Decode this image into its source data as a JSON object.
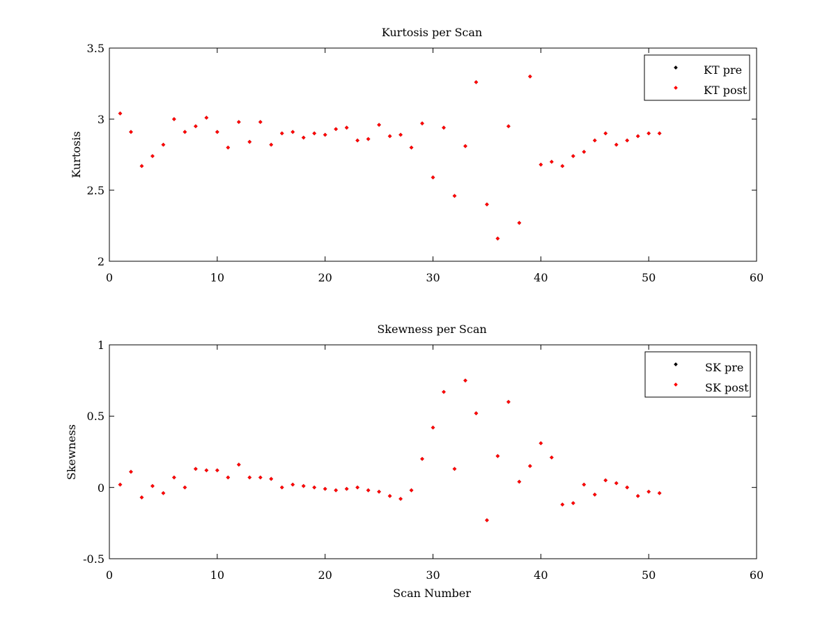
{
  "colors": {
    "pre": "#000000",
    "post": "#ff0000"
  },
  "chart_data": [
    {
      "type": "scatter",
      "title": "Kurtosis per Scan",
      "xlabel": "",
      "ylabel": "Kurtosis",
      "xlim": [
        0,
        60
      ],
      "ylim": [
        2,
        3.5
      ],
      "xticks": [
        0,
        10,
        20,
        30,
        40,
        50,
        60
      ],
      "xtick_labels": [
        "0",
        "10",
        "20",
        "30",
        "40",
        "50",
        "60"
      ],
      "yticks": [
        2,
        2.5,
        3,
        3.5
      ],
      "ytick_labels": [
        "2",
        "2.5",
        "3",
        "3.5"
      ],
      "grid": false,
      "legend_position": "top-right",
      "series": [
        {
          "name": "KT pre",
          "color": "#000000",
          "x": [
            1,
            2,
            3,
            4,
            5,
            6,
            7,
            8,
            9,
            10,
            11,
            12,
            13,
            14,
            15,
            16,
            17,
            18,
            19,
            20,
            21,
            22,
            23,
            24,
            25,
            26,
            27,
            28,
            29,
            30,
            31,
            32,
            33,
            34,
            35,
            36,
            37,
            38,
            39,
            40,
            41,
            42,
            43,
            44,
            45,
            46,
            47,
            48,
            49,
            50,
            51
          ],
          "y": [
            3.04,
            2.91,
            2.67,
            2.74,
            2.82,
            3.0,
            2.91,
            2.95,
            3.01,
            2.91,
            2.8,
            2.98,
            2.84,
            2.98,
            2.82,
            2.9,
            2.91,
            2.87,
            2.9,
            2.89,
            2.93,
            2.94,
            2.85,
            2.86,
            2.96,
            2.88,
            2.89,
            2.8,
            2.97,
            2.59,
            2.94,
            2.46,
            2.81,
            3.26,
            2.4,
            2.16,
            2.95,
            2.27,
            3.3,
            2.68,
            2.7,
            2.67,
            2.74,
            2.77,
            2.85,
            2.9,
            2.82,
            2.85,
            2.88,
            2.9,
            2.9
          ]
        },
        {
          "name": "KT post",
          "color": "#ff0000",
          "x": [
            1,
            2,
            3,
            4,
            5,
            6,
            7,
            8,
            9,
            10,
            11,
            12,
            13,
            14,
            15,
            16,
            17,
            18,
            19,
            20,
            21,
            22,
            23,
            24,
            25,
            26,
            27,
            28,
            29,
            30,
            31,
            32,
            33,
            34,
            35,
            36,
            37,
            38,
            39,
            40,
            41,
            42,
            43,
            44,
            45,
            46,
            47,
            48,
            49,
            50,
            51
          ],
          "y": [
            3.04,
            2.91,
            2.67,
            2.74,
            2.82,
            3.0,
            2.91,
            2.95,
            3.01,
            2.91,
            2.8,
            2.98,
            2.84,
            2.98,
            2.82,
            2.9,
            2.91,
            2.87,
            2.9,
            2.89,
            2.93,
            2.94,
            2.85,
            2.86,
            2.96,
            2.88,
            2.89,
            2.8,
            2.97,
            2.59,
            2.94,
            2.46,
            2.81,
            3.26,
            2.4,
            2.16,
            2.95,
            2.27,
            3.3,
            2.68,
            2.7,
            2.67,
            2.74,
            2.77,
            2.85,
            2.9,
            2.82,
            2.85,
            2.88,
            2.9,
            2.9
          ]
        }
      ]
    },
    {
      "type": "scatter",
      "title": "Skewness per Scan",
      "xlabel": "Scan Number",
      "ylabel": "Skewness",
      "xlim": [
        0,
        60
      ],
      "ylim": [
        -0.5,
        1
      ],
      "xticks": [
        0,
        10,
        20,
        30,
        40,
        50,
        60
      ],
      "xtick_labels": [
        "0",
        "10",
        "20",
        "30",
        "40",
        "50",
        "60"
      ],
      "yticks": [
        -0.5,
        0,
        0.5,
        1
      ],
      "ytick_labels": [
        "-0.5",
        "0",
        "0.5",
        "1"
      ],
      "grid": false,
      "legend_position": "top-right",
      "series": [
        {
          "name": "SK pre",
          "color": "#000000",
          "x": [
            1,
            2,
            3,
            4,
            5,
            6,
            7,
            8,
            9,
            10,
            11,
            12,
            13,
            14,
            15,
            16,
            17,
            18,
            19,
            20,
            21,
            22,
            23,
            24,
            25,
            26,
            27,
            28,
            29,
            30,
            31,
            32,
            33,
            34,
            35,
            36,
            37,
            38,
            39,
            40,
            41,
            42,
            43,
            44,
            45,
            46,
            47,
            48,
            49,
            50,
            51
          ],
          "y": [
            0.02,
            0.11,
            -0.07,
            0.01,
            -0.04,
            0.07,
            0.0,
            0.13,
            0.12,
            0.12,
            0.07,
            0.16,
            0.07,
            0.07,
            0.06,
            0.0,
            0.02,
            0.01,
            0.0,
            -0.01,
            -0.02,
            -0.01,
            0.0,
            -0.02,
            -0.03,
            -0.06,
            -0.08,
            -0.02,
            0.2,
            0.42,
            0.67,
            0.13,
            0.75,
            0.52,
            -0.23,
            0.22,
            0.6,
            0.04,
            0.15,
            0.31,
            0.21,
            -0.12,
            -0.11,
            0.02,
            -0.05,
            0.05,
            0.03,
            0.0,
            -0.06,
            -0.03,
            -0.04
          ]
        },
        {
          "name": "SK post",
          "color": "#ff0000",
          "x": [
            1,
            2,
            3,
            4,
            5,
            6,
            7,
            8,
            9,
            10,
            11,
            12,
            13,
            14,
            15,
            16,
            17,
            18,
            19,
            20,
            21,
            22,
            23,
            24,
            25,
            26,
            27,
            28,
            29,
            30,
            31,
            32,
            33,
            34,
            35,
            36,
            37,
            38,
            39,
            40,
            41,
            42,
            43,
            44,
            45,
            46,
            47,
            48,
            49,
            50,
            51
          ],
          "y": [
            0.02,
            0.11,
            -0.07,
            0.01,
            -0.04,
            0.07,
            0.0,
            0.13,
            0.12,
            0.12,
            0.07,
            0.16,
            0.07,
            0.07,
            0.06,
            0.0,
            0.02,
            0.01,
            0.0,
            -0.01,
            -0.02,
            -0.01,
            0.0,
            -0.02,
            -0.03,
            -0.06,
            -0.08,
            -0.02,
            0.2,
            0.42,
            0.67,
            0.13,
            0.75,
            0.52,
            -0.23,
            0.22,
            0.6,
            0.04,
            0.15,
            0.31,
            0.21,
            -0.12,
            -0.11,
            0.02,
            -0.05,
            0.05,
            0.03,
            0.0,
            -0.06,
            -0.03,
            -0.04
          ]
        }
      ]
    }
  ]
}
